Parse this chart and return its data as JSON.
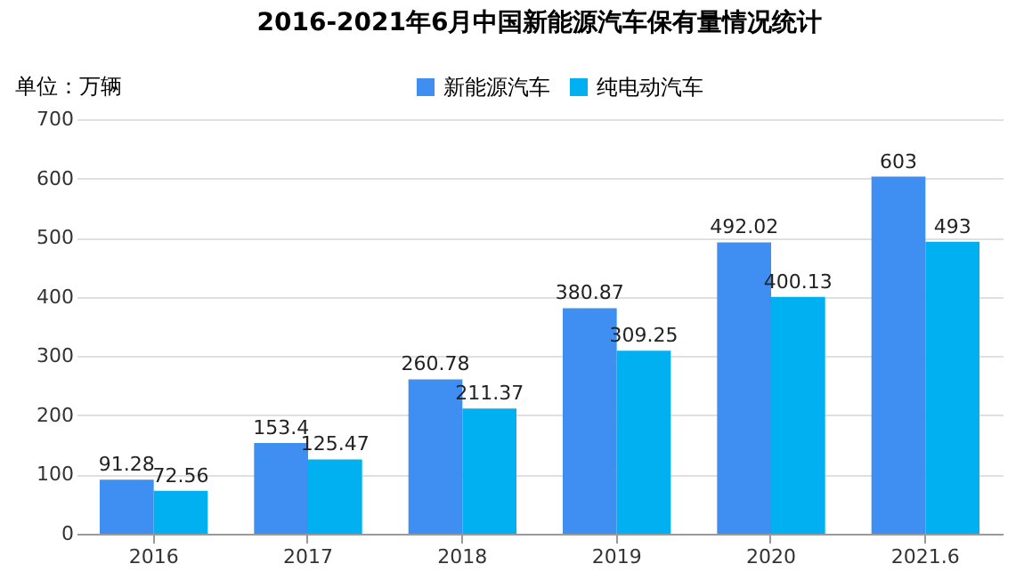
{
  "chart_data": {
    "type": "bar",
    "title": "2016-2021年6月中国新能源汽车保有量情况统计",
    "ylabel": "单位：万辆",
    "categories": [
      "2016",
      "2017",
      "2018",
      "2019",
      "2020",
      "2021.6"
    ],
    "series": [
      {
        "name": "新能源汽车",
        "color": "#3f8ef2",
        "values": [
          91.28,
          153.4,
          260.78,
          380.87,
          492.02,
          603
        ]
      },
      {
        "name": "纯电动汽车",
        "color": "#00b0f0",
        "values": [
          72.56,
          125.47,
          211.37,
          309.25,
          400.13,
          493
        ]
      }
    ],
    "ylim": [
      0,
      700
    ],
    "yticks": [
      0,
      100,
      200,
      300,
      400,
      500,
      600,
      700
    ],
    "grid": "y",
    "legend": "top",
    "data_labels": true
  }
}
